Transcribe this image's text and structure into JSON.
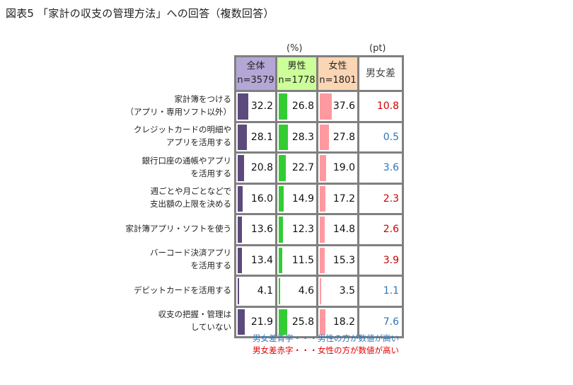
{
  "title": "図表5 「家計の収支の管理方法」への回答（複数回答）",
  "units": {
    "percent": "(%)",
    "pt": "(pt)"
  },
  "columns": [
    {
      "name": "全体",
      "n": "n=3579",
      "header_bg": "#b4a7d6",
      "bar_color": "#5c4a7d"
    },
    {
      "name": "男性",
      "n": "n=1778",
      "header_bg": "#ccff99",
      "bar_color": "#33cc33"
    },
    {
      "name": "女性",
      "n": "n=1801",
      "header_bg": "#fcd5b4",
      "bar_color": "#ff99a0"
    },
    {
      "name": "男女差"
    }
  ],
  "rows": [
    {
      "label1": "家計簿をつける",
      "label2": "（アプリ・専用ソフト以外）",
      "all": "32.2",
      "male": "26.8",
      "female": "37.6",
      "diff": "10.8",
      "diff_color": "#cc0000"
    },
    {
      "label1": "クレジットカードの明細や",
      "label2": "アプリを活用する",
      "all": "28.1",
      "male": "28.3",
      "female": "27.8",
      "diff": "0.5",
      "diff_color": "#2e75b6"
    },
    {
      "label1": "銀行口座の通帳やアプリ",
      "label2": "を活用する",
      "all": "20.8",
      "male": "22.7",
      "female": "19.0",
      "diff": "3.6",
      "diff_color": "#2e75b6"
    },
    {
      "label1": "週ごとや月ごとなどで",
      "label2": "支出額の上限を決める",
      "all": "16.0",
      "male": "14.9",
      "female": "17.2",
      "diff": "2.3",
      "diff_color": "#cc0000"
    },
    {
      "label1": "家計簿アプリ・ソフトを使う",
      "label2": "",
      "all": "13.6",
      "male": "12.3",
      "female": "14.8",
      "diff": "2.6",
      "diff_color": "#cc0000"
    },
    {
      "label1": "バーコード決済アプリ",
      "label2": "を活用する",
      "all": "13.4",
      "male": "11.5",
      "female": "15.3",
      "diff": "3.9",
      "diff_color": "#cc0000"
    },
    {
      "label1": "デビットカードを活用する",
      "label2": "",
      "all": "4.1",
      "male": "4.6",
      "female": "3.5",
      "diff": "1.1",
      "diff_color": "#2e75b6"
    },
    {
      "label1": "収支の把握・管理は",
      "label2": "していない",
      "all": "21.9",
      "male": "25.8",
      "female": "18.2",
      "diff": "7.6",
      "diff_color": "#2e75b6"
    }
  ],
  "notes": {
    "blue": "男女差青字・・・男性の方が数値が高い",
    "red": "男女差赤字・・・女性の方が数値が高い"
  },
  "chart_data": {
    "type": "bar",
    "title": "図表5 「家計の収支の管理方法」への回答（複数回答）",
    "orientation": "horizontal-in-table",
    "categories": [
      "家計簿をつける（アプリ・専用ソフト以外）",
      "クレジットカードの明細やアプリを活用する",
      "銀行口座の通帳やアプリを活用する",
      "週ごとや月ごとなどで支出額の上限を決める",
      "家計簿アプリ・ソフトを使う",
      "バーコード決済アプリを活用する",
      "デビットカードを活用する",
      "収支の把握・管理はしていない"
    ],
    "series": [
      {
        "name": "全体 n=3579",
        "unit": "%",
        "values": [
          32.2,
          28.1,
          20.8,
          16.0,
          13.6,
          13.4,
          4.1,
          21.9
        ]
      },
      {
        "name": "男性 n=1778",
        "unit": "%",
        "values": [
          26.8,
          28.3,
          22.7,
          14.9,
          12.3,
          11.5,
          4.6,
          25.8
        ]
      },
      {
        "name": "女性 n=1801",
        "unit": "%",
        "values": [
          37.6,
          27.8,
          19.0,
          17.2,
          14.8,
          15.3,
          3.5,
          18.2
        ]
      },
      {
        "name": "男女差",
        "unit": "pt",
        "values": [
          10.8,
          0.5,
          3.6,
          2.3,
          2.6,
          3.9,
          1.1,
          7.6
        ],
        "higher": [
          "女性",
          "男性",
          "男性",
          "女性",
          "女性",
          "女性",
          "男性",
          "男性"
        ]
      }
    ],
    "legend_notes": [
      "男女差青字・・・男性の方が数値が高い",
      "男女差赤字・・・女性の方が数値が高い"
    ],
    "xlabel": "",
    "ylabel": "",
    "grid": true
  }
}
